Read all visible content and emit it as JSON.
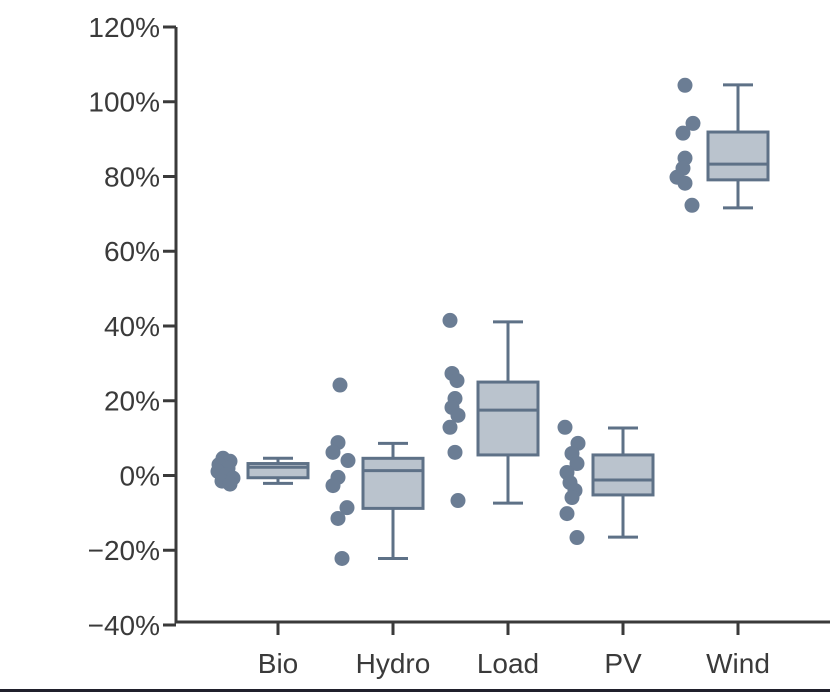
{
  "chart_data": {
    "type": "boxplot",
    "title": "",
    "xlabel": "",
    "ylabel": "",
    "legend": "none",
    "grid": false,
    "categories": [
      "Bio",
      "Hydro",
      "Load",
      "PV",
      "Wind"
    ],
    "y_axis": {
      "min": -40,
      "max": 120,
      "tick_step": 20,
      "unit": "%",
      "tick_labels": [
        "120%",
        "100%",
        "80%",
        "60%",
        "40%",
        "20%",
        "0%",
        "−20%",
        "−40%"
      ],
      "tick_values": [
        120,
        100,
        80,
        60,
        40,
        20,
        0,
        -20,
        -40
      ]
    },
    "series": [
      {
        "category": "Bio",
        "box": {
          "whisker_low": -2.1,
          "q1": -0.6,
          "median": 2.2,
          "q3": 3.2,
          "whisker_high": 4.6
        },
        "points": [
          {
            "v": 4.6,
            "j": -4
          },
          {
            "v": 3.8,
            "j": 3
          },
          {
            "v": 2.9,
            "j": -8
          },
          {
            "v": 1.9,
            "j": 1
          },
          {
            "v": 1.1,
            "j": -9
          },
          {
            "v": 0.2,
            "j": -1
          },
          {
            "v": -0.7,
            "j": 6
          },
          {
            "v": -1.5,
            "j": -5
          },
          {
            "v": -2.3,
            "j": 3
          }
        ]
      },
      {
        "category": "Hydro",
        "box": {
          "whisker_low": -22.2,
          "q1": -8.8,
          "median": 1.3,
          "q3": 4.6,
          "whisker_high": 8.6
        },
        "points": [
          {
            "v": 24.2,
            "j": -2
          },
          {
            "v": 8.8,
            "j": -4
          },
          {
            "v": 6.2,
            "j": -9
          },
          {
            "v": 4.0,
            "j": 6
          },
          {
            "v": -0.5,
            "j": -4
          },
          {
            "v": -2.7,
            "j": -9
          },
          {
            "v": -8.6,
            "j": 5
          },
          {
            "v": -11.5,
            "j": -4
          },
          {
            "v": -22.2,
            "j": 0
          }
        ]
      },
      {
        "category": "Load",
        "box": {
          "whisker_low": -7.4,
          "q1": 5.5,
          "median": 17.5,
          "q3": 25.0,
          "whisker_high": 41.1
        },
        "points": [
          {
            "v": 41.5,
            "j": -7
          },
          {
            "v": 27.3,
            "j": -5
          },
          {
            "v": 25.4,
            "j": 0
          },
          {
            "v": 20.6,
            "j": -2
          },
          {
            "v": 18.2,
            "j": -5
          },
          {
            "v": 16.1,
            "j": 1
          },
          {
            "v": 12.9,
            "j": -7
          },
          {
            "v": 6.2,
            "j": -2
          },
          {
            "v": -6.7,
            "j": 1
          }
        ]
      },
      {
        "category": "PV",
        "box": {
          "whisker_low": -16.5,
          "q1": -5.2,
          "median": -1.2,
          "q3": 5.5,
          "whisker_high": 12.7
        },
        "points": [
          {
            "v": 12.9,
            "j": -7
          },
          {
            "v": 8.6,
            "j": 6
          },
          {
            "v": 5.9,
            "j": 0
          },
          {
            "v": 3.2,
            "j": 5
          },
          {
            "v": 0.8,
            "j": -5
          },
          {
            "v": -1.9,
            "j": -2
          },
          {
            "v": -4.0,
            "j": 3
          },
          {
            "v": -5.9,
            "j": 0
          },
          {
            "v": -10.2,
            "j": -5
          },
          {
            "v": -16.6,
            "j": 5
          }
        ]
      },
      {
        "category": "Wind",
        "box": {
          "whisker_low": 71.6,
          "q1": 79.1,
          "median": 83.3,
          "q3": 91.9,
          "whisker_high": 104.5
        },
        "points": [
          {
            "v": 104.4,
            "j": -2
          },
          {
            "v": 94.2,
            "j": 6
          },
          {
            "v": 91.6,
            "j": -4
          },
          {
            "v": 84.9,
            "j": -2
          },
          {
            "v": 82.2,
            "j": -4
          },
          {
            "v": 79.8,
            "j": -10
          },
          {
            "v": 78.2,
            "j": -2
          },
          {
            "v": 72.3,
            "j": 5
          }
        ]
      }
    ],
    "colors": {
      "point": "#6b7d94",
      "box_fill": "#bac3cd",
      "box_stroke": "#5e7187",
      "axis": "#3a3a3a",
      "text": "#3a3a3a",
      "bottom_rule": "#20202c",
      "background": "#ffffff"
    }
  }
}
